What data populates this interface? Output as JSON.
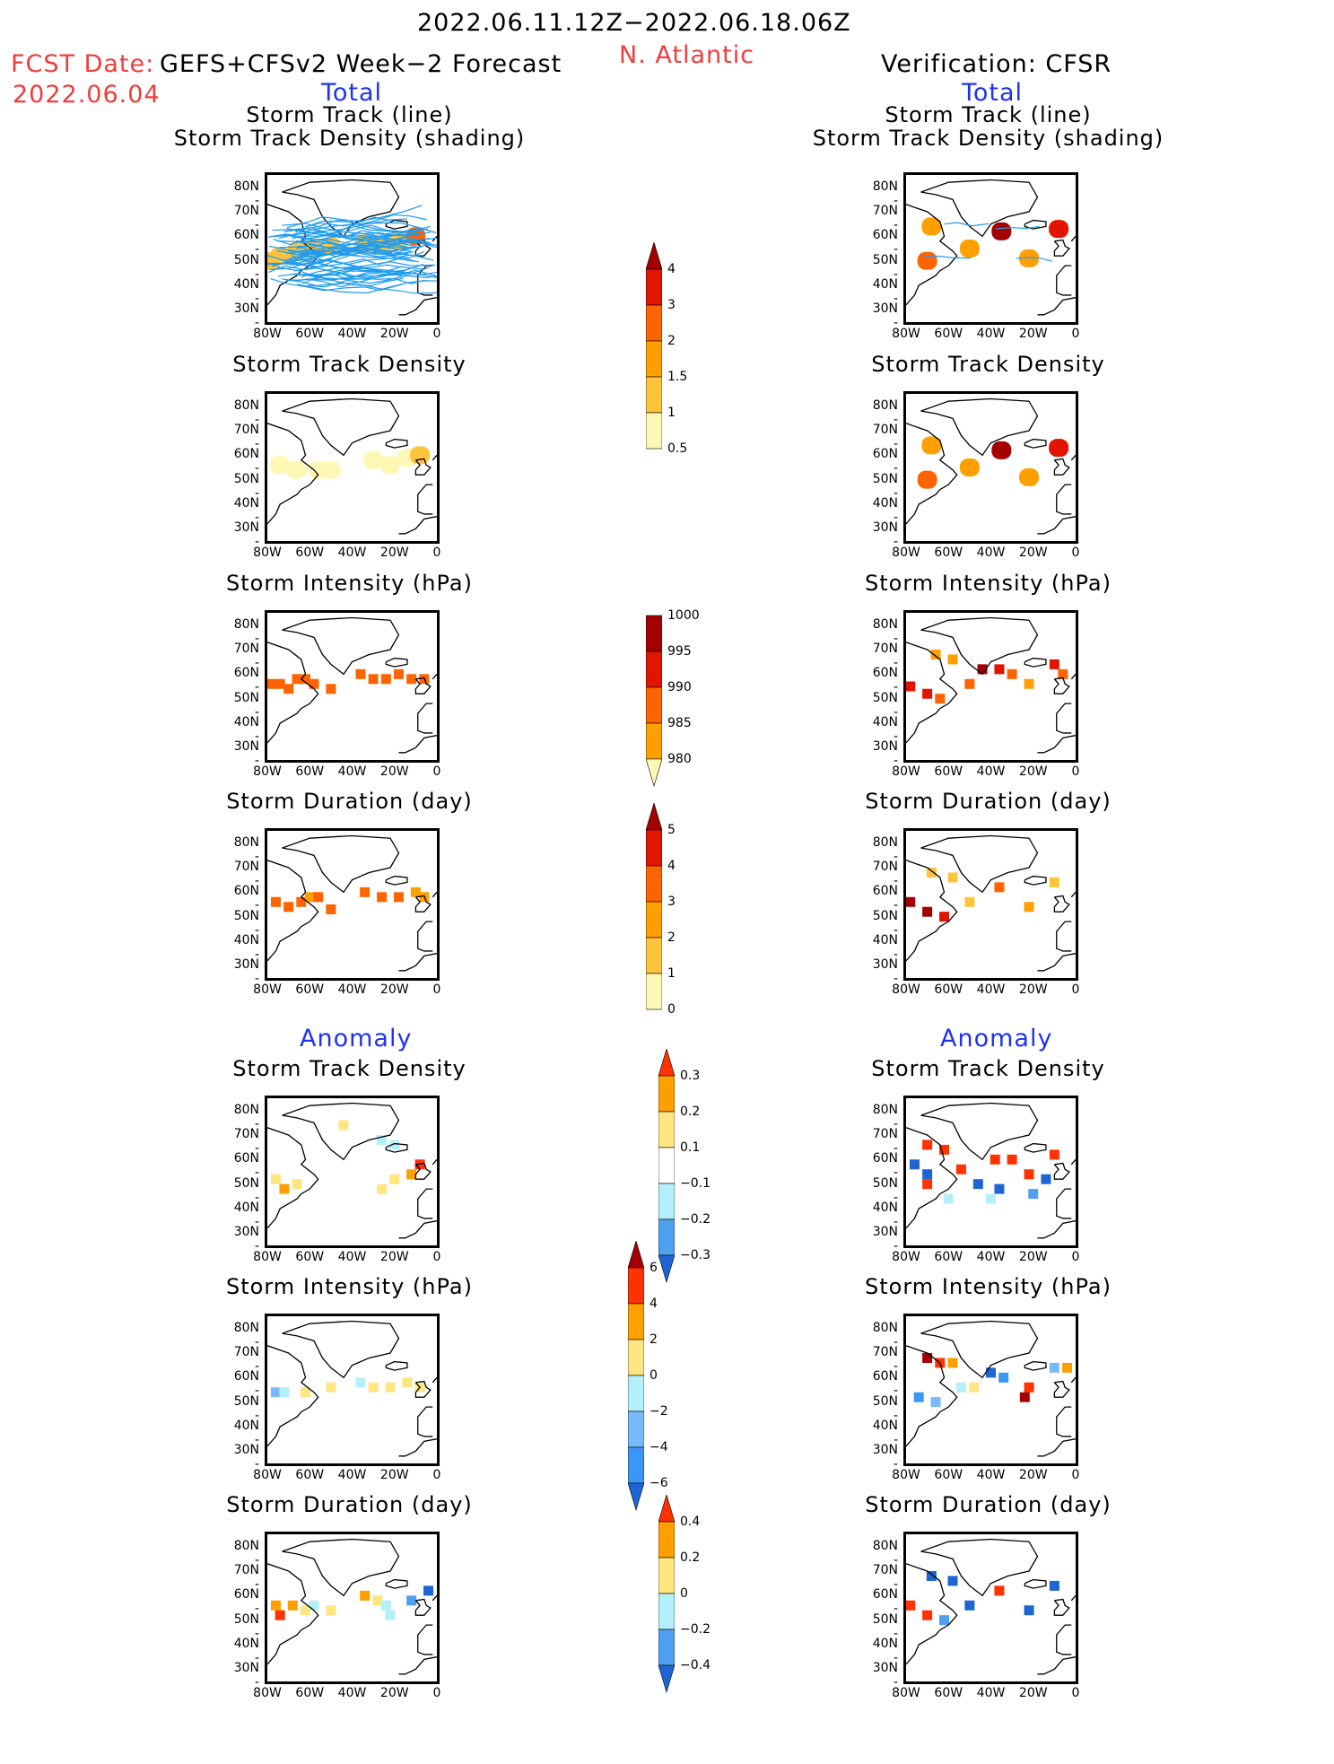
{
  "header": {
    "period": "2022.06.11.12Z−2022.06.18.06Z",
    "region": "N. Atlantic",
    "fcst_label": "FCST Date:",
    "fcst_model": "GEFS+CFSv2 Week−2 Forecast",
    "fcst_date": "2022.06.04",
    "verification": "Verification: CFSR",
    "left_section_total": "Total",
    "right_section_total": "Total",
    "left_section_anomaly": "Anomaly",
    "right_section_anomaly": "Anomaly"
  },
  "colors": {
    "title_red": "#f03c3c",
    "section_blue": "#1e32f0",
    "track_line": "#1e9bf0"
  },
  "axes": {
    "lat_ticks": [
      "80N",
      "70N",
      "60N",
      "50N",
      "40N",
      "30N"
    ],
    "lon_ticks": [
      "80W",
      "60W",
      "40W",
      "20W",
      "0"
    ],
    "lon_range": [
      -80,
      0
    ],
    "lat_range": [
      25,
      85
    ]
  },
  "chart_data": [
    {
      "id": "fc-track",
      "type": "heatmap",
      "column": "forecast",
      "section": "Total",
      "title": "Storm Track (line)",
      "title2": "Storm Track Density (shading)",
      "colorbar": "density",
      "cells": [
        [
          -78,
          50,
          1
        ],
        [
          -74,
          52,
          1
        ],
        [
          -66,
          54,
          1
        ],
        [
          -58,
          55,
          1
        ],
        [
          -50,
          56,
          1
        ],
        [
          -34,
          57,
          1
        ],
        [
          -26,
          56,
          1
        ],
        [
          -18,
          58,
          1
        ],
        [
          -10,
          60,
          2
        ]
      ],
      "tracks": true
    },
    {
      "id": "vf-track",
      "type": "heatmap",
      "column": "verification",
      "section": "Total",
      "title": "Storm Track (line)",
      "title2": "Storm Track Density (shading)",
      "colorbar": "density",
      "cells": [
        [
          -68,
          64,
          1.5
        ],
        [
          -70,
          50,
          2
        ],
        [
          -50,
          55,
          1.5
        ],
        [
          -35,
          62,
          5
        ],
        [
          -22,
          51,
          1.5
        ],
        [
          -8,
          63,
          3
        ]
      ],
      "tracks": true
    },
    {
      "id": "fc-std",
      "type": "heatmap",
      "column": "forecast",
      "section": "Total",
      "title": "Storm Track Density",
      "colorbar": "density",
      "cells": [
        [
          -74,
          56,
          0.5
        ],
        [
          -66,
          54,
          0.5
        ],
        [
          -56,
          54,
          0.5
        ],
        [
          -50,
          54,
          0.5
        ],
        [
          -30,
          58,
          0.5
        ],
        [
          -22,
          56,
          0.5
        ],
        [
          -14,
          59,
          0.5
        ],
        [
          -8,
          60,
          1
        ]
      ]
    },
    {
      "id": "vf-std",
      "type": "heatmap",
      "column": "verification",
      "section": "Total",
      "title": "Storm Track Density",
      "colorbar": "density",
      "cells": [
        [
          -68,
          64,
          1.5
        ],
        [
          -70,
          50,
          2
        ],
        [
          -50,
          55,
          1.5
        ],
        [
          -35,
          62,
          5
        ],
        [
          -22,
          51,
          1.5
        ],
        [
          -8,
          63,
          3
        ]
      ]
    },
    {
      "id": "fc-int",
      "type": "heatmap",
      "column": "forecast",
      "section": "Total",
      "title": "Storm Intensity (hPa)",
      "colorbar": "intensity",
      "cells": [
        [
          -78,
          56,
          992
        ],
        [
          -74,
          56,
          992
        ],
        [
          -70,
          54,
          992
        ],
        [
          -66,
          58,
          992
        ],
        [
          -62,
          58,
          992
        ],
        [
          -58,
          56,
          992
        ],
        [
          -50,
          54,
          992
        ],
        [
          -36,
          60,
          992
        ],
        [
          -30,
          58,
          992
        ],
        [
          -24,
          58,
          992
        ],
        [
          -18,
          60,
          992
        ],
        [
          -12,
          58,
          992
        ],
        [
          -6,
          58,
          992
        ]
      ]
    },
    {
      "id": "vf-int",
      "type": "heatmap",
      "column": "verification",
      "section": "Total",
      "title": "Storm Intensity (hPa)",
      "colorbar": "intensity",
      "cells": [
        [
          -66,
          68,
          997
        ],
        [
          -58,
          66,
          997
        ],
        [
          -50,
          56,
          992
        ],
        [
          -44,
          62,
          984
        ],
        [
          -36,
          62,
          988
        ],
        [
          -30,
          60,
          992
        ],
        [
          -22,
          56,
          997
        ],
        [
          -10,
          64,
          988
        ],
        [
          -6,
          60,
          992
        ],
        [
          -78,
          55,
          988
        ],
        [
          -70,
          52,
          988
        ],
        [
          -64,
          50,
          992
        ]
      ]
    },
    {
      "id": "fc-dur",
      "type": "heatmap",
      "column": "forecast",
      "section": "Total",
      "title": "Storm Duration (day)",
      "colorbar": "duration",
      "cells": [
        [
          -76,
          56,
          3.5
        ],
        [
          -70,
          54,
          3.5
        ],
        [
          -64,
          56,
          3.5
        ],
        [
          -60,
          58,
          2.5
        ],
        [
          -56,
          58,
          3.5
        ],
        [
          -50,
          53,
          3.5
        ],
        [
          -34,
          60,
          3.5
        ],
        [
          -26,
          58,
          3.5
        ],
        [
          -18,
          58,
          3.5
        ],
        [
          -10,
          60,
          2.5
        ],
        [
          -6,
          58,
          2.5
        ]
      ]
    },
    {
      "id": "vf-dur",
      "type": "heatmap",
      "column": "verification",
      "section": "Total",
      "title": "Storm Duration (day)",
      "colorbar": "duration",
      "cells": [
        [
          -68,
          68,
          1.5
        ],
        [
          -58,
          66,
          1.5
        ],
        [
          -50,
          56,
          1.5
        ],
        [
          -36,
          62,
          3.5
        ],
        [
          -22,
          54,
          2.5
        ],
        [
          -10,
          64,
          1.5
        ],
        [
          -78,
          56,
          5.5
        ],
        [
          -70,
          52,
          5.5
        ],
        [
          -62,
          50,
          4.5
        ]
      ]
    },
    {
      "id": "fc-std-anom",
      "type": "heatmap",
      "column": "forecast",
      "section": "Anomaly",
      "title": "Storm Track Density",
      "colorbar": "std_anom",
      "cells": [
        [
          -44,
          74,
          0.15
        ],
        [
          -76,
          52,
          0.15
        ],
        [
          -72,
          48,
          0.25
        ],
        [
          -66,
          50,
          0.15
        ],
        [
          -26,
          68,
          -0.15
        ],
        [
          -20,
          66,
          -0.15
        ],
        [
          -8,
          58,
          0.35
        ],
        [
          -12,
          54,
          0.25
        ],
        [
          -20,
          52,
          0.15
        ],
        [
          -26,
          48,
          0.15
        ]
      ]
    },
    {
      "id": "vf-std-anom",
      "type": "heatmap",
      "column": "verification",
      "section": "Anomaly",
      "title": "Storm Track Density",
      "colorbar": "std_anom",
      "cells": [
        [
          -70,
          66,
          0.35
        ],
        [
          -62,
          64,
          0.35
        ],
        [
          -76,
          58,
          -0.35
        ],
        [
          -70,
          54,
          -0.35
        ],
        [
          -70,
          50,
          0.35
        ],
        [
          -54,
          56,
          0.35
        ],
        [
          -38,
          60,
          0.35
        ],
        [
          -30,
          60,
          0.35
        ],
        [
          -10,
          62,
          0.35
        ],
        [
          -46,
          50,
          -0.35
        ],
        [
          -36,
          48,
          -0.35
        ],
        [
          -22,
          54,
          0.35
        ],
        [
          -14,
          52,
          -0.35
        ],
        [
          -40,
          44,
          -0.15
        ],
        [
          -60,
          44,
          -0.15
        ],
        [
          -20,
          46,
          -0.25
        ]
      ]
    },
    {
      "id": "fc-int-anom",
      "type": "heatmap",
      "column": "forecast",
      "section": "Anomaly",
      "title": "Storm Intensity (hPa)",
      "colorbar": "int_anom",
      "cells": [
        [
          -76,
          54,
          -3
        ],
        [
          -72,
          54,
          -1
        ],
        [
          -62,
          54,
          1
        ],
        [
          -50,
          56,
          1
        ],
        [
          -36,
          58,
          -1
        ],
        [
          -30,
          56,
          1
        ],
        [
          -22,
          56,
          1
        ],
        [
          -14,
          58,
          1
        ],
        [
          -8,
          56,
          1
        ]
      ]
    },
    {
      "id": "vf-int-anom",
      "type": "heatmap",
      "column": "verification",
      "section": "Anomaly",
      "title": "Storm Intensity (hPa)",
      "colorbar": "int_anom",
      "cells": [
        [
          -70,
          68,
          7
        ],
        [
          -64,
          66,
          5
        ],
        [
          -58,
          66,
          3
        ],
        [
          -54,
          56,
          -1
        ],
        [
          -48,
          56,
          1
        ],
        [
          -40,
          62,
          -7
        ],
        [
          -34,
          60,
          -5
        ],
        [
          -22,
          56,
          5
        ],
        [
          -24,
          52,
          7
        ],
        [
          -10,
          64,
          -3
        ],
        [
          -4,
          64,
          3
        ],
        [
          -74,
          52,
          -5
        ],
        [
          -66,
          50,
          -3
        ]
      ]
    },
    {
      "id": "fc-dur-anom",
      "type": "heatmap",
      "column": "forecast",
      "section": "Anomaly",
      "title": "Storm Duration (day)",
      "colorbar": "dur_anom",
      "cells": [
        [
          -76,
          56,
          0.3
        ],
        [
          -74,
          52,
          0.5
        ],
        [
          -68,
          56,
          0.3
        ],
        [
          -62,
          54,
          0.1
        ],
        [
          -58,
          56,
          -0.1
        ],
        [
          -50,
          54,
          0.1
        ],
        [
          -34,
          60,
          0.3
        ],
        [
          -28,
          58,
          0.1
        ],
        [
          -24,
          56,
          -0.1
        ],
        [
          -12,
          58,
          -0.3
        ],
        [
          -4,
          62,
          -0.5
        ],
        [
          -22,
          52,
          -0.1
        ]
      ]
    },
    {
      "id": "vf-dur-anom",
      "type": "heatmap",
      "column": "verification",
      "section": "Anomaly",
      "title": "Storm Duration (day)",
      "colorbar": "dur_anom",
      "cells": [
        [
          -68,
          68,
          -0.5
        ],
        [
          -58,
          66,
          -0.5
        ],
        [
          -50,
          56,
          -0.5
        ],
        [
          -36,
          62,
          0.5
        ],
        [
          -22,
          54,
          -0.5
        ],
        [
          -10,
          64,
          -0.5
        ],
        [
          -78,
          56,
          0.5
        ],
        [
          -70,
          52,
          0.5
        ],
        [
          -62,
          50,
          -0.3
        ]
      ]
    }
  ],
  "colorbars": {
    "density": {
      "labels": [
        "4",
        "3",
        "2",
        "1.5",
        "1",
        "0.5"
      ],
      "levels": [
        0.5,
        1,
        1.5,
        2,
        3,
        4
      ],
      "colors": [
        "#fff8b4",
        "#ffc43c",
        "#ffa000",
        "#ff6400",
        "#e11400",
        "#a50000"
      ],
      "arrow": "top"
    },
    "intensity": {
      "labels": [
        "1000",
        "995",
        "990",
        "985",
        "980"
      ],
      "levels": [
        980,
        985,
        990,
        995,
        1000
      ],
      "colors": [
        "#fff8b4",
        "#ffa000",
        "#ff6400",
        "#e11400",
        "#a50000"
      ],
      "arrow": "bottom"
    },
    "duration": {
      "labels": [
        "5",
        "4",
        "3",
        "2",
        "1",
        "0"
      ],
      "levels": [
        0,
        1,
        2,
        3,
        4,
        5
      ],
      "colors": [
        "#fff8b4",
        "#ffc43c",
        "#ffa000",
        "#ff6400",
        "#e11400",
        "#a50000"
      ],
      "arrow": "top"
    },
    "std_anom": {
      "labels": [
        "0.3",
        "0.2",
        "0.1",
        "−0.1",
        "−0.2",
        "−0.3"
      ],
      "levels": [
        -0.3,
        -0.2,
        -0.1,
        0.1,
        0.2,
        0.3
      ],
      "colors": [
        "#1e64d2",
        "#50a0f0",
        "#b4f0fa",
        "#ffffff",
        "#ffe680",
        "#ffa000",
        "#ff3200"
      ],
      "arrow": "both"
    },
    "int_anom": {
      "labels": [
        "6",
        "4",
        "2",
        "0",
        "−2",
        "−4",
        "−6"
      ],
      "levels": [
        -6,
        -4,
        -2,
        0,
        2,
        4,
        6
      ],
      "colors": [
        "#1e64d2",
        "#3c96f5",
        "#78b9fa",
        "#b4f0fa",
        "#ffe680",
        "#ffa000",
        "#ff3200",
        "#a50000"
      ],
      "arrow": "both"
    },
    "dur_anom": {
      "labels": [
        "0.4",
        "0.2",
        "0",
        "−0.2",
        "−0.4"
      ],
      "levels": [
        -0.4,
        -0.2,
        0,
        0.2,
        0.4
      ],
      "colors": [
        "#1e64d2",
        "#50a0f0",
        "#b4f0fa",
        "#ffe680",
        "#ffa000",
        "#ff3200"
      ],
      "arrow": "both"
    }
  }
}
